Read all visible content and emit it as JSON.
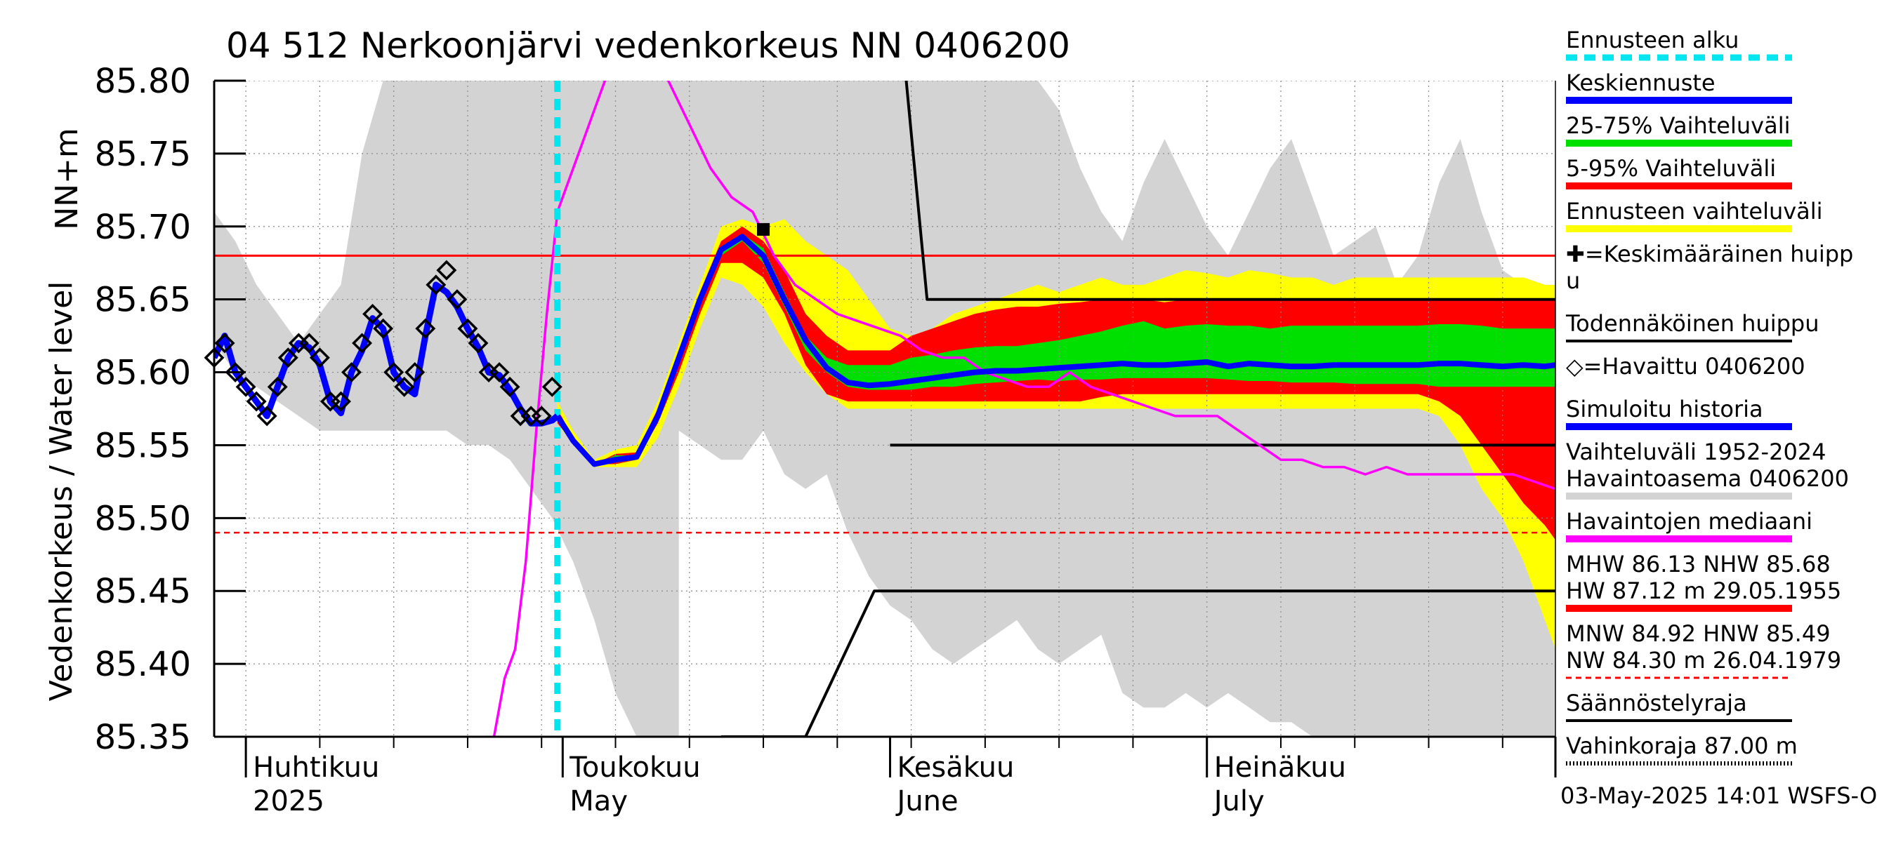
{
  "chart_data": {
    "type": "line",
    "title": "04 512 Nerkoonjärvi vedenkorkeus NN 0406200",
    "ylabel_top": "NN+m",
    "ylabel": "Vedenkorkeus / Water level",
    "ylim": [
      85.35,
      85.8
    ],
    "yticks": [
      "85.80",
      "85.75",
      "85.70",
      "85.65",
      "85.60",
      "85.55",
      "85.50",
      "85.45",
      "85.40",
      "85.35"
    ],
    "xrange_days": [
      0,
      127
    ],
    "xaxis_note": "days from 2025-03-29",
    "month_labels": [
      {
        "fi": "Huhtikuu",
        "en": "2025",
        "day": 3
      },
      {
        "fi": "Toukokuu",
        "en": "May",
        "day": 33
      },
      {
        "fi": "Kesäkuu",
        "en": "June",
        "day": 64
      },
      {
        "fi": "Heinäkuu",
        "en": "July",
        "day": 94
      }
    ],
    "forecast_start_day": 32.5,
    "reference_lines": {
      "nhw": 85.68,
      "hnw": 85.49
    },
    "band_days": [
      0,
      2,
      4,
      6,
      8,
      10,
      12,
      14,
      16,
      18,
      20,
      22,
      24,
      26,
      28,
      30,
      32,
      34,
      36,
      38,
      40,
      42,
      44,
      46,
      48,
      50,
      52,
      54,
      56,
      58,
      60,
      62,
      64,
      66,
      68,
      70,
      72,
      74,
      76,
      78,
      80,
      82,
      84,
      86,
      88,
      90,
      92,
      94,
      96,
      98,
      100,
      102,
      104,
      106,
      108,
      110,
      112,
      114,
      116,
      118,
      120,
      122,
      124,
      126,
      127
    ],
    "hist_upper": [
      85.71,
      85.69,
      85.66,
      85.64,
      85.62,
      85.64,
      85.66,
      85.75,
      85.8,
      85.8,
      85.8,
      85.8,
      85.8,
      85.8,
      85.8,
      85.8,
      85.8,
      85.8,
      85.8,
      85.8,
      85.8,
      85.8,
      85.8,
      85.8,
      85.8,
      85.8,
      85.8,
      85.8,
      85.8,
      85.8,
      85.8,
      85.8,
      85.8,
      85.8,
      85.8,
      85.8,
      85.8,
      85.8,
      85.8,
      85.8,
      85.78,
      85.74,
      85.71,
      85.69,
      85.73,
      85.76,
      85.73,
      85.7,
      85.68,
      85.71,
      85.74,
      85.76,
      85.72,
      85.68,
      85.69,
      85.7,
      85.66,
      85.68,
      85.73,
      85.76,
      85.71,
      85.67,
      85.66,
      85.65,
      85.65
    ],
    "hist_lower": [
      85.62,
      85.6,
      85.59,
      85.58,
      85.57,
      85.56,
      85.56,
      85.56,
      85.56,
      85.56,
      85.56,
      85.56,
      85.55,
      85.55,
      85.54,
      85.52,
      85.5,
      85.47,
      85.43,
      85.38,
      85.35,
      85.35,
      85.35,
      85.35,
      85.35,
      85.35,
      85.35,
      85.35,
      85.35,
      85.35,
      85.35,
      85.35,
      85.35,
      85.35,
      85.35,
      85.35,
      85.35,
      85.35,
      85.35,
      85.35,
      85.35,
      85.35,
      85.35,
      85.35,
      85.35,
      85.35,
      85.35,
      85.35,
      85.35,
      85.35,
      85.35,
      85.35,
      85.35,
      85.35,
      85.35,
      85.35,
      85.35,
      85.35,
      85.35,
      85.35,
      85.35,
      85.35,
      85.35,
      85.35,
      85.35
    ],
    "hist_white_upper": [
      null,
      null,
      null,
      null,
      null,
      null,
      null,
      null,
      null,
      null,
      null,
      null,
      null,
      null,
      null,
      null,
      null,
      null,
      null,
      null,
      null,
      null,
      85.56,
      85.55,
      85.54,
      85.54,
      85.56,
      85.53,
      85.52,
      85.53,
      85.49,
      85.46,
      85.44,
      85.43,
      85.41,
      85.4,
      85.41,
      85.42,
      85.43,
      85.41,
      85.4,
      85.41,
      85.42,
      85.38,
      85.37,
      85.37,
      85.38,
      85.37,
      85.38,
      85.37,
      85.36,
      85.36,
      85.35,
      null,
      null,
      null,
      null,
      null,
      null,
      null,
      null,
      null,
      null,
      null,
      null
    ],
    "forecast_days": [
      32.5,
      34,
      36,
      38,
      40,
      42,
      44,
      46,
      48,
      50,
      52,
      54,
      56,
      58,
      60,
      62,
      64,
      66,
      68,
      70,
      72,
      74,
      76,
      78,
      80,
      82,
      84,
      86,
      88,
      90,
      92,
      94,
      96,
      98,
      100,
      102,
      104,
      106,
      108,
      110,
      112,
      114,
      116,
      118,
      120,
      122,
      124,
      126,
      127
    ],
    "yellow_upper": [
      85.58,
      85.56,
      85.54,
      85.547,
      85.55,
      85.58,
      85.62,
      85.66,
      85.7,
      85.705,
      85.7,
      85.705,
      85.69,
      85.68,
      85.67,
      85.65,
      85.63,
      85.625,
      85.63,
      85.64,
      85.645,
      85.65,
      85.655,
      85.66,
      85.655,
      85.66,
      85.665,
      85.66,
      85.66,
      85.665,
      85.67,
      85.668,
      85.665,
      85.67,
      85.668,
      85.665,
      85.665,
      85.66,
      85.665,
      85.665,
      85.665,
      85.665,
      85.665,
      85.665,
      85.665,
      85.665,
      85.665,
      85.66,
      85.66
    ],
    "yellow_lower": [
      85.565,
      85.55,
      85.535,
      85.535,
      85.535,
      85.555,
      85.59,
      85.63,
      85.665,
      85.66,
      85.645,
      85.62,
      85.6,
      85.585,
      85.575,
      85.575,
      85.575,
      85.575,
      85.575,
      85.575,
      85.575,
      85.575,
      85.575,
      85.575,
      85.575,
      85.575,
      85.575,
      85.575,
      85.575,
      85.575,
      85.575,
      85.575,
      85.575,
      85.575,
      85.575,
      85.575,
      85.575,
      85.575,
      85.575,
      85.575,
      85.575,
      85.575,
      85.57,
      85.55,
      85.52,
      85.5,
      85.47,
      85.43,
      85.41
    ],
    "red_upper": [
      85.575,
      85.555,
      85.537,
      85.544,
      85.545,
      85.575,
      85.615,
      85.655,
      85.69,
      85.7,
      85.69,
      85.67,
      85.64,
      85.625,
      85.615,
      85.615,
      85.615,
      85.625,
      85.63,
      85.635,
      85.64,
      85.643,
      85.645,
      85.645,
      85.647,
      85.648,
      85.65,
      85.65,
      85.65,
      85.648,
      85.65,
      85.65,
      85.65,
      85.65,
      85.65,
      85.65,
      85.65,
      85.65,
      85.65,
      85.65,
      85.65,
      85.65,
      85.65,
      85.65,
      85.65,
      85.65,
      85.65,
      85.65,
      85.65
    ],
    "red_lower": [
      85.565,
      85.552,
      85.537,
      85.537,
      85.54,
      85.565,
      85.6,
      85.64,
      85.675,
      85.675,
      85.665,
      85.64,
      85.605,
      85.585,
      85.58,
      85.58,
      85.58,
      85.58,
      85.58,
      85.58,
      85.58,
      85.58,
      85.58,
      85.58,
      85.58,
      85.58,
      85.583,
      85.585,
      85.585,
      85.585,
      85.585,
      85.585,
      85.585,
      85.585,
      85.585,
      85.585,
      85.585,
      85.585,
      85.585,
      85.585,
      85.585,
      85.585,
      85.58,
      85.57,
      85.55,
      85.53,
      85.51,
      85.495,
      85.485
    ],
    "green_upper": [
      85.572,
      85.554,
      85.537,
      85.543,
      85.543,
      85.572,
      85.612,
      85.652,
      85.685,
      85.695,
      85.685,
      85.655,
      85.625,
      85.61,
      85.605,
      85.605,
      85.605,
      85.61,
      85.612,
      85.615,
      85.617,
      85.618,
      85.618,
      85.62,
      85.622,
      85.625,
      85.628,
      85.632,
      85.635,
      85.63,
      85.632,
      85.633,
      85.632,
      85.632,
      85.63,
      85.632,
      85.632,
      85.632,
      85.632,
      85.632,
      85.632,
      85.632,
      85.633,
      85.633,
      85.632,
      85.63,
      85.63,
      85.63,
      85.63
    ],
    "green_lower": [
      85.568,
      85.553,
      85.537,
      85.538,
      85.54,
      85.568,
      85.605,
      85.645,
      85.68,
      85.69,
      85.675,
      85.645,
      85.615,
      85.6,
      85.59,
      85.588,
      85.588,
      85.588,
      85.59,
      85.59,
      85.592,
      85.593,
      85.594,
      85.595,
      85.594,
      85.595,
      85.595,
      85.596,
      85.596,
      85.596,
      85.596,
      85.596,
      85.595,
      85.594,
      85.594,
      85.593,
      85.593,
      85.593,
      85.592,
      85.592,
      85.592,
      85.592,
      85.59,
      85.59,
      85.59,
      85.59,
      85.59,
      85.59,
      85.59
    ],
    "mean_forecast": [
      85.57,
      85.553,
      85.537,
      85.54,
      85.542,
      85.57,
      85.61,
      85.65,
      85.684,
      85.693,
      85.68,
      85.65,
      85.622,
      85.603,
      85.593,
      85.591,
      85.592,
      85.594,
      85.596,
      85.598,
      85.6,
      85.601,
      85.601,
      85.602,
      85.603,
      85.604,
      85.605,
      85.606,
      85.605,
      85.605,
      85.606,
      85.607,
      85.604,
      85.606,
      85.605,
      85.604,
      85.604,
      85.605,
      85.605,
      85.605,
      85.605,
      85.605,
      85.606,
      85.606,
      85.605,
      85.604,
      85.605,
      85.604,
      85.605
    ],
    "simulated_history": {
      "days": [
        0,
        1,
        2,
        3,
        4,
        5,
        6,
        7,
        8,
        9,
        10,
        11,
        12,
        13,
        14,
        15,
        16,
        17,
        18,
        19,
        20,
        21,
        22,
        23,
        24,
        25,
        26,
        27,
        28,
        29,
        30,
        31,
        32,
        32.5
      ],
      "values": [
        85.61,
        85.625,
        85.6,
        85.59,
        85.58,
        85.57,
        85.59,
        85.61,
        85.62,
        85.617,
        85.605,
        85.58,
        85.572,
        85.6,
        85.615,
        85.637,
        85.63,
        85.6,
        85.59,
        85.585,
        85.625,
        85.66,
        85.655,
        85.645,
        85.63,
        85.617,
        85.6,
        85.598,
        85.588,
        85.575,
        85.565,
        85.565,
        85.567,
        85.57
      ]
    },
    "observed": {
      "days": [
        0,
        1,
        2,
        3,
        4,
        5,
        6,
        7,
        8,
        9,
        10,
        11,
        12,
        13,
        14,
        15,
        16,
        17,
        18,
        19,
        20,
        21,
        22,
        23,
        24,
        25,
        26,
        27,
        28,
        29,
        30,
        31,
        32
      ],
      "values": [
        85.61,
        85.62,
        85.6,
        85.59,
        85.58,
        85.57,
        85.59,
        85.61,
        85.62,
        85.62,
        85.61,
        85.58,
        85.58,
        85.6,
        85.62,
        85.64,
        85.63,
        85.6,
        85.59,
        85.6,
        85.63,
        85.66,
        85.67,
        85.65,
        85.63,
        85.62,
        85.6,
        85.6,
        85.59,
        85.57,
        85.57,
        85.57,
        85.59
      ]
    },
    "median": {
      "days": [
        26.5,
        27.5,
        28.5,
        29.5,
        30.5,
        31.5,
        32.5,
        33.5,
        34.5,
        35.5,
        36.5,
        37,
        37.5,
        38.5,
        40,
        41.5,
        43,
        45,
        47,
        49,
        51,
        53,
        55,
        57,
        59,
        61,
        63,
        65,
        67,
        69,
        71,
        73,
        75,
        77,
        79,
        81,
        83,
        85,
        87,
        89,
        91,
        93,
        95,
        97,
        99,
        101,
        103,
        105,
        107,
        109,
        111,
        113,
        115,
        117,
        119,
        121,
        123,
        125,
        127
      ],
      "values": [
        85.35,
        85.39,
        85.41,
        85.47,
        85.56,
        85.64,
        85.71,
        85.73,
        85.75,
        85.77,
        85.79,
        85.8,
        85.84,
        85.86,
        85.84,
        85.83,
        85.8,
        85.77,
        85.74,
        85.72,
        85.71,
        85.68,
        85.66,
        85.65,
        85.64,
        85.635,
        85.63,
        85.625,
        85.615,
        85.61,
        85.61,
        85.6,
        85.595,
        85.59,
        85.59,
        85.6,
        85.59,
        85.585,
        85.58,
        85.575,
        85.57,
        85.57,
        85.57,
        85.56,
        85.55,
        85.54,
        85.54,
        85.535,
        85.535,
        85.53,
        85.535,
        85.53,
        85.53,
        85.53,
        85.53,
        85.53,
        85.53,
        85.525,
        85.52
      ]
    },
    "mean_peak": {
      "day": 52,
      "value": 85.698
    },
    "regulation_upper": {
      "days": [
        65,
        67.5,
        127
      ],
      "values": [
        85.84,
        85.65,
        85.65
      ]
    },
    "probable_peak_line": {
      "days": [
        64,
        127
      ],
      "values": [
        85.55,
        85.55
      ]
    },
    "regulation_lower": {
      "days": [
        48,
        56,
        62.5,
        127
      ],
      "values": [
        85.35,
        85.35,
        85.45,
        85.45
      ]
    },
    "hnw_line": {
      "days": [
        0,
        127
      ],
      "values": [
        85.49,
        85.49
      ]
    },
    "legend": [
      {
        "label": "Ennusteen alku",
        "color": "#00e5ee",
        "style": "dashed"
      },
      {
        "label": "Keskiennuste",
        "color": "#0000ff",
        "style": "solid"
      },
      {
        "label": "25-75% Vaihteluväli",
        "color": "#00e000",
        "style": "solid"
      },
      {
        "label": "5-95% Vaihteluväli",
        "color": "#ff0000",
        "style": "solid"
      },
      {
        "label": "Ennusteen vaihteluväli",
        "color": "#ffff00",
        "style": "solid"
      },
      {
        "label": "✚=Keskimääräinen huipp",
        "label2": "u",
        "color": "#000000",
        "style": "none"
      },
      {
        "label": "Todennäköinen huippu",
        "color": "#000000",
        "style": "solid"
      },
      {
        "label": "◇=Havaittu 0406200",
        "color": "#000000",
        "style": "none"
      },
      {
        "label": "Simuloitu historia",
        "color": "#0000ff",
        "style": "solid"
      },
      {
        "label": "Vaihteluväli 1952-2024",
        "label2": " Havaintoasema 0406200",
        "color": "#d3d3d3",
        "style": "solid"
      },
      {
        "label": "Havaintojen mediaani",
        "color": "#ff00ff",
        "style": "solid"
      },
      {
        "label": "MHW  86.13 NHW  85.68",
        "label2": "HW  87.12 m 29.05.1955",
        "color": "#ff0000",
        "style": "solid"
      },
      {
        "label": "MNW  84.92 HNW  85.49",
        "label2": "NW  84.30 m 26.04.1979",
        "color": "#ff0000",
        "style": "dashed"
      },
      {
        "label": "Säännöstelyraja",
        "color": "#000000",
        "style": "solid"
      },
      {
        "label": "Vahinkoraja 87.00 m",
        "color": "#000000",
        "style": "dotted"
      }
    ],
    "footer": "03-May-2025 14:01 WSFS-O"
  },
  "colors": {
    "hist_band": "#d3d3d3",
    "yellow": "#ffff00",
    "red": "#ff0000",
    "green": "#00e000",
    "blue": "#0000ff",
    "magenta": "#ff00ff",
    "cyan": "#00e5ee",
    "grid": "#888888"
  }
}
